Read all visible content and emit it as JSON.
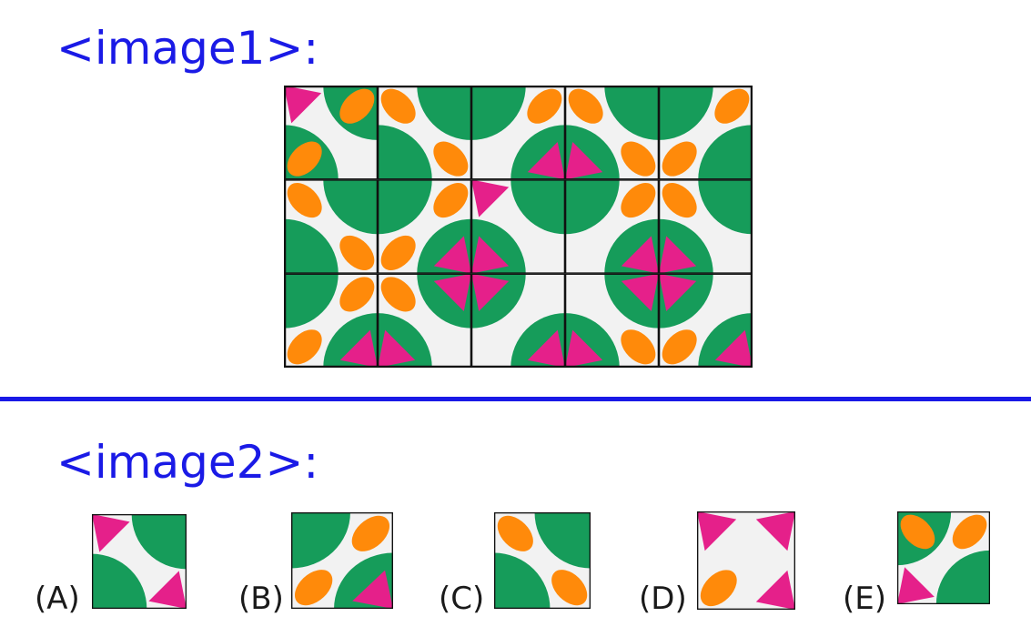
{
  "headings": {
    "puzzle": "<image1>:",
    "options": "<image2>:"
  },
  "colors": {
    "background": "#ffffff",
    "heading": "#1a1ae6",
    "tile_base": "#f2f2f2",
    "green": "#169c5a",
    "orange": "#ff8a0a",
    "magenta": "#e5208a",
    "grid_line": "#111111"
  },
  "grid": {
    "rows": 3,
    "cols": 5,
    "tiles": [
      {
        "green": [
          "tr",
          "bl"
        ],
        "orange": [
          "tr",
          "bl"
        ],
        "magenta": [
          "tl"
        ]
      },
      {
        "green": [
          "tr",
          "bl"
        ],
        "orange": [
          "tl",
          "br"
        ],
        "magenta": []
      },
      {
        "green": [
          "tl",
          "br"
        ],
        "orange": [
          "tr"
        ],
        "magenta": [
          "br"
        ]
      },
      {
        "green": [
          "tr",
          "bl"
        ],
        "orange": [
          "tl",
          "br"
        ],
        "magenta": [
          "bl"
        ]
      },
      {
        "green": [
          "tl",
          "br"
        ],
        "orange": [
          "tr",
          "bl"
        ],
        "magenta": []
      },
      {
        "green": [
          "tr",
          "bl"
        ],
        "orange": [
          "tl",
          "br"
        ],
        "magenta": []
      },
      {
        "green": [
          "tl",
          "br"
        ],
        "orange": [
          "tr",
          "bl"
        ],
        "magenta": [
          "br"
        ]
      },
      {
        "green": [
          "tr",
          "bl"
        ],
        "orange": [],
        "magenta": [
          "tl",
          "bl"
        ]
      },
      {
        "green": [
          "tl",
          "br"
        ],
        "orange": [
          "tr"
        ],
        "magenta": [
          "br"
        ]
      },
      {
        "green": [
          "tr",
          "bl"
        ],
        "orange": [
          "tl"
        ],
        "magenta": [
          "bl"
        ]
      },
      {
        "green": [
          "tl",
          "br"
        ],
        "orange": [
          "tr",
          "bl"
        ],
        "magenta": [
          "br"
        ]
      },
      {
        "green": [
          "tr",
          "bl"
        ],
        "orange": [
          "tl"
        ],
        "magenta": [
          "tr",
          "bl"
        ]
      },
      {
        "green": [
          "tl",
          "br"
        ],
        "orange": [],
        "magenta": [
          "tl",
          "br"
        ]
      },
      {
        "green": [
          "tr",
          "bl"
        ],
        "orange": [
          "br"
        ],
        "magenta": [
          "tr",
          "bl"
        ]
      },
      {
        "green": [
          "tl",
          "br"
        ],
        "orange": [
          "bl"
        ],
        "magenta": [
          "tl",
          "br"
        ]
      }
    ]
  },
  "options": [
    {
      "label": "(A)",
      "green": [
        "tr",
        "bl"
      ],
      "orange": [],
      "magenta": [
        "tl",
        "br"
      ]
    },
    {
      "label": "(B)",
      "green": [
        "tl",
        "br"
      ],
      "orange": [
        "tr",
        "bl"
      ],
      "magenta": [
        "br"
      ]
    },
    {
      "label": "(C)",
      "green": [
        "tr",
        "bl"
      ],
      "orange": [
        "tl",
        "br"
      ],
      "magenta": []
    },
    {
      "label": "(D)",
      "green": [],
      "orange": [
        "bl"
      ],
      "magenta": [
        "tl",
        "tr",
        "br"
      ]
    },
    {
      "label": "(E)",
      "green": [
        "tl",
        "br"
      ],
      "orange": [
        "tl",
        "tr"
      ],
      "magenta": [
        "bl"
      ]
    }
  ]
}
